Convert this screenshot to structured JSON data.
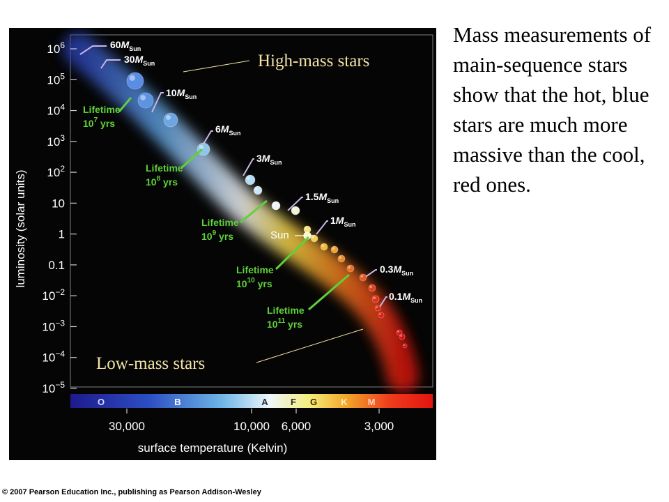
{
  "figure": {
    "y_axis_label": "luminosity (solar units)",
    "x_axis_label": "surface temperature (Kelvin)",
    "y_ticks": [
      {
        "base": "10",
        "exp": "6",
        "value": 1000000
      },
      {
        "base": "10",
        "exp": "5",
        "value": 100000
      },
      {
        "base": "10",
        "exp": "4",
        "value": 10000
      },
      {
        "base": "10",
        "exp": "3",
        "value": 1000
      },
      {
        "base": "10",
        "exp": "2",
        "value": 100
      },
      {
        "base": "10",
        "exp": "",
        "value": 10
      },
      {
        "base": "1",
        "exp": "",
        "value": 1
      },
      {
        "base": "0.1",
        "exp": "",
        "value": 0.1
      },
      {
        "base": "10",
        "exp": "−2",
        "value": 0.01
      },
      {
        "base": "10",
        "exp": "−3",
        "value": 0.001
      },
      {
        "base": "10",
        "exp": "−4",
        "value": 0.0001
      },
      {
        "base": "10",
        "exp": "−5",
        "value": 1e-05
      }
    ],
    "x_ticks": [
      "30,000",
      "10,000",
      "6,000",
      "3,000"
    ],
    "spectral_classes": [
      "O",
      "B",
      "A",
      "F",
      "G",
      "K",
      "M"
    ],
    "mass_labels": [
      {
        "value": "60",
        "sub": "Sun",
        "symbol": "M"
      },
      {
        "value": "30",
        "sub": "Sun",
        "symbol": "M"
      },
      {
        "value": "10",
        "sub": "Sun",
        "symbol": "M"
      },
      {
        "value": "6",
        "sub": "Sun",
        "symbol": "M"
      },
      {
        "value": "3",
        "sub": "Sun",
        "symbol": "M"
      },
      {
        "value": "1.5",
        "sub": "Sun",
        "symbol": "M"
      },
      {
        "value": "1",
        "sub": "Sun",
        "symbol": "M"
      },
      {
        "value": "0.3",
        "sub": "Sun",
        "symbol": "M"
      },
      {
        "value": "0.1",
        "sub": "Sun",
        "symbol": "M"
      }
    ],
    "lifetimes": [
      {
        "label": "Lifetime",
        "base": "10",
        "exp": "7",
        "unit": "yrs"
      },
      {
        "label": "Lifetime",
        "base": "10",
        "exp": "8",
        "unit": "yrs"
      },
      {
        "label": "Lifetime",
        "base": "10",
        "exp": "9",
        "unit": "yrs"
      },
      {
        "label": "Lifetime",
        "base": "10",
        "exp": "10",
        "unit": "yrs"
      },
      {
        "label": "Lifetime",
        "base": "10",
        "exp": "11",
        "unit": "yrs"
      }
    ],
    "sun_label": "Sun",
    "high_mass_label": "High-mass stars",
    "low_mass_label": "Low-mass stars"
  },
  "caption": "Mass measurements of main-sequence stars show that the hot, blue stars are much more massive than the cool, red ones.",
  "copyright": "© 2007 Pearson Education Inc., publishing as Pearson Addison-Wesley",
  "colors": {
    "lifetime_green": "#5fd13a",
    "mass_label_lilac": "#c9b6e6",
    "annotation_text": "#f3e3a6"
  }
}
